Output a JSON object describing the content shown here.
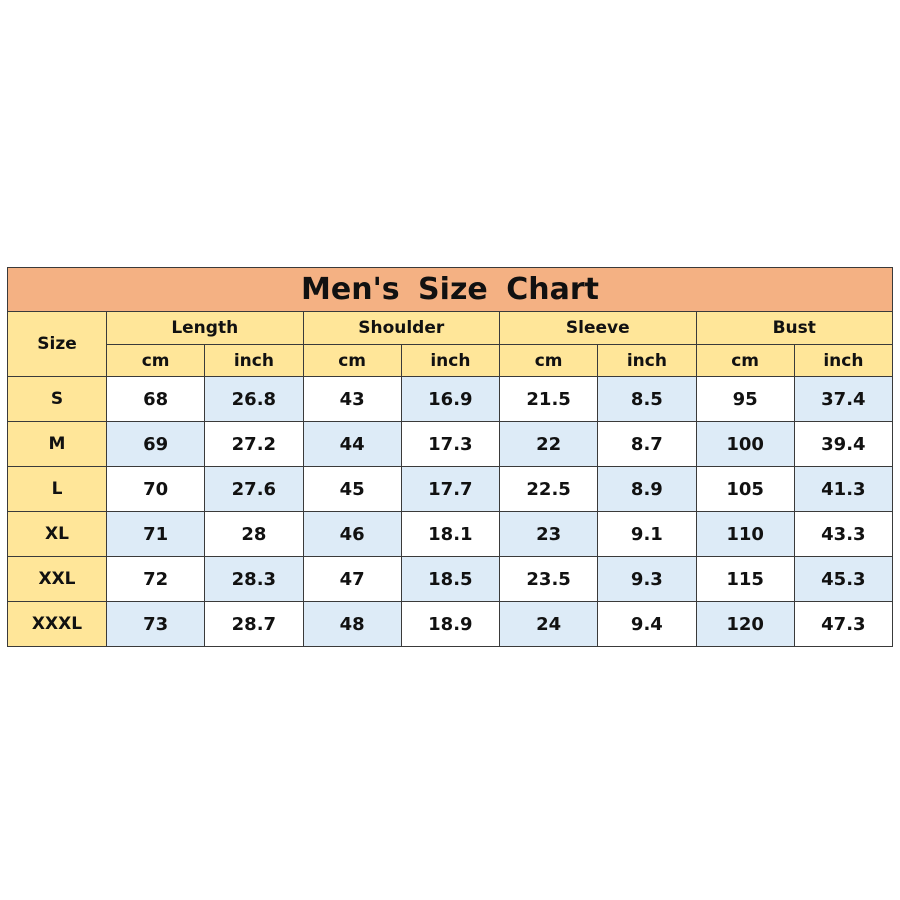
{
  "title": "Men's Size Chart",
  "size_header": "Size",
  "groups": [
    "Length",
    "Shoulder",
    "Sleeve",
    "Bust"
  ],
  "units": [
    "cm",
    "inch"
  ],
  "colors": {
    "title_bg": "#F4B183",
    "header_bg": "#FFE699",
    "alt_bg": "#DDEBF7"
  },
  "rows": [
    {
      "size": "S",
      "values": [
        "68",
        "26.8",
        "43",
        "16.9",
        "21.5",
        "8.5",
        "95",
        "37.4"
      ]
    },
    {
      "size": "M",
      "values": [
        "69",
        "27.2",
        "44",
        "17.3",
        "22",
        "8.7",
        "100",
        "39.4"
      ]
    },
    {
      "size": "L",
      "values": [
        "70",
        "27.6",
        "45",
        "17.7",
        "22.5",
        "8.9",
        "105",
        "41.3"
      ]
    },
    {
      "size": "XL",
      "values": [
        "71",
        "28",
        "46",
        "18.1",
        "23",
        "9.1",
        "110",
        "43.3"
      ]
    },
    {
      "size": "XXL",
      "values": [
        "72",
        "28.3",
        "47",
        "18.5",
        "23.5",
        "9.3",
        "115",
        "45.3"
      ]
    },
    {
      "size": "XXXL",
      "values": [
        "73",
        "28.7",
        "48",
        "18.9",
        "24",
        "9.4",
        "120",
        "47.3"
      ]
    }
  ]
}
